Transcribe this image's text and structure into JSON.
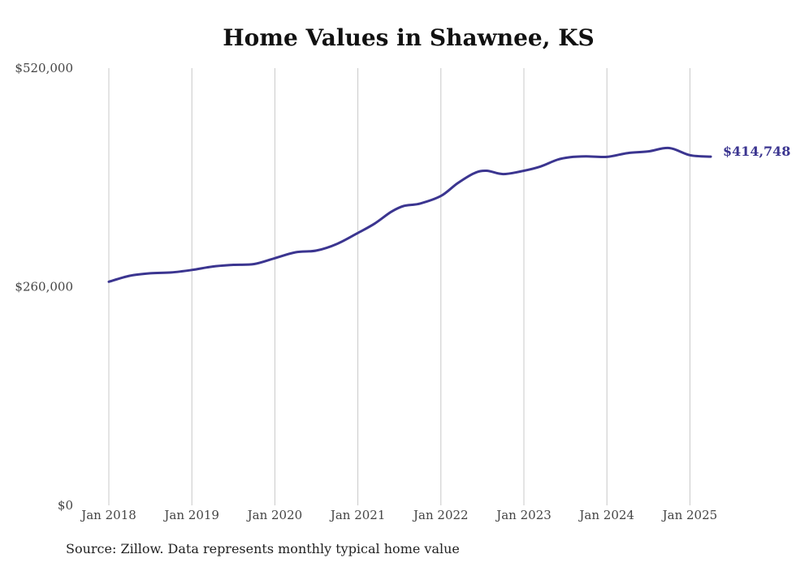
{
  "chart_data": {
    "type": "line",
    "title": "Home Values in Shawnee, KS",
    "xlabel": "",
    "ylabel": "",
    "ylim": [
      0,
      520000
    ],
    "y_ticks": [
      {
        "value": 0,
        "label": "$0"
      },
      {
        "value": 260000,
        "label": "$260,000"
      },
      {
        "value": 520000,
        "label": "$520,000"
      }
    ],
    "x_ticks": [
      {
        "value": 2018,
        "label": "Jan 2018"
      },
      {
        "value": 2019,
        "label": "Jan 2019"
      },
      {
        "value": 2020,
        "label": "Jan 2020"
      },
      {
        "value": 2021,
        "label": "Jan 2021"
      },
      {
        "value": 2022,
        "label": "Jan 2022"
      },
      {
        "value": 2023,
        "label": "Jan 2023"
      },
      {
        "value": 2024,
        "label": "Jan 2024"
      },
      {
        "value": 2025,
        "label": "Jan 2025"
      }
    ],
    "grid": "vertical",
    "series": [
      {
        "color": "#3b3590",
        "x": [
          2018.0,
          2018.25,
          2018.5,
          2018.75,
          2019.0,
          2019.25,
          2019.5,
          2019.75,
          2020.0,
          2020.25,
          2020.5,
          2020.75,
          2021.0,
          2021.2,
          2021.4,
          2021.55,
          2021.75,
          2022.0,
          2022.2,
          2022.4,
          2022.55,
          2022.75,
          2023.0,
          2023.2,
          2023.4,
          2023.55,
          2023.75,
          2024.0,
          2024.25,
          2024.5,
          2024.75,
          2025.0,
          2025.25
        ],
        "values": [
          266000,
          273000,
          276000,
          277000,
          280000,
          284000,
          286000,
          287000,
          294000,
          301000,
          303000,
          311000,
          324000,
          335000,
          349000,
          356000,
          359000,
          368000,
          383000,
          395000,
          398000,
          394000,
          398000,
          403000,
          411000,
          414000,
          415000,
          414500,
          419000,
          421000,
          425000,
          416500,
          414748
        ]
      }
    ],
    "end_label": "$414,748"
  },
  "source_note": "Source: Zillow. Data represents monthly typical home value"
}
